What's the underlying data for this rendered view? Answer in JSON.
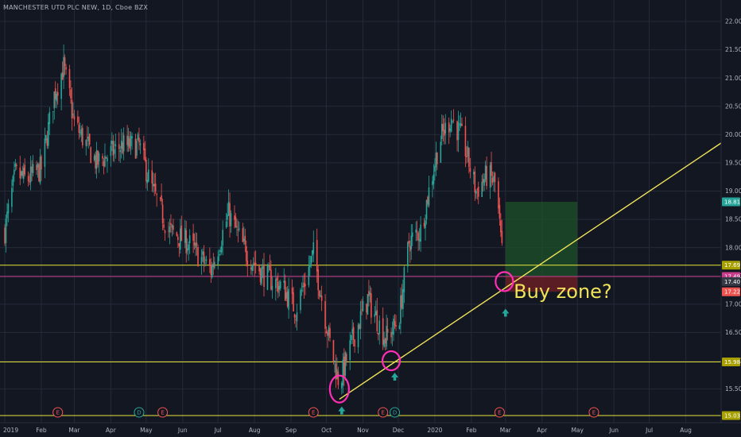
{
  "header": {
    "symbol_title": "MANCHESTER UTD PLC NEW, 1D, Cboe BZX"
  },
  "colors": {
    "background": "#131722",
    "grid": "#252a38",
    "candle_up": "#26a69a",
    "candle_down": "#ef5350",
    "trendline": "#f0e35a",
    "level_line": "#e6e63a",
    "entry_line": "#c93b8b",
    "annotation": "#ff2fb5",
    "arrow": "#26a69a",
    "profit_zone": "#1e5128",
    "loss_zone": "#6e1f25"
  },
  "chart_data": {
    "type": "candlestick",
    "title": "MANCHESTER UTD PLC NEW, 1D, Cboe BZX",
    "xlabel": "",
    "ylabel": "",
    "ylim": [
      15.0,
      22.1
    ],
    "y_ticks": [
      "15.50",
      "16.00",
      "16.50",
      "17.00",
      "17.50",
      "18.00",
      "18.50",
      "19.00",
      "19.50",
      "20.00",
      "20.50",
      "21.00",
      "21.50",
      "22.00"
    ],
    "x_ticks": [
      "2019",
      "Feb",
      "Mar",
      "Apr",
      "May",
      "Jun",
      "Jul",
      "Aug",
      "Sep",
      "Oct",
      "Nov",
      "Dec",
      "2020",
      "Feb",
      "Mar",
      "Apr",
      "May",
      "Jun",
      "Jul",
      "Aug"
    ],
    "grid": true,
    "price_path_close": [
      {
        "date": "2019-01-01",
        "close": 18.3
      },
      {
        "date": "2019-01-10",
        "close": 19.3
      },
      {
        "date": "2019-01-20",
        "close": 19.2
      },
      {
        "date": "2019-02-01",
        "close": 19.4
      },
      {
        "date": "2019-02-12",
        "close": 20.7
      },
      {
        "date": "2019-02-20",
        "close": 21.2
      },
      {
        "date": "2019-03-01",
        "close": 20.2
      },
      {
        "date": "2019-03-20",
        "close": 19.5
      },
      {
        "date": "2019-04-10",
        "close": 19.8
      },
      {
        "date": "2019-04-25",
        "close": 19.8
      },
      {
        "date": "2019-05-05",
        "close": 19.1
      },
      {
        "date": "2019-05-20",
        "close": 18.3
      },
      {
        "date": "2019-06-05",
        "close": 18.1
      },
      {
        "date": "2019-06-25",
        "close": 17.6
      },
      {
        "date": "2019-07-10",
        "close": 18.6
      },
      {
        "date": "2019-07-25",
        "close": 17.9
      },
      {
        "date": "2019-08-10",
        "close": 17.5
      },
      {
        "date": "2019-08-25",
        "close": 17.3
      },
      {
        "date": "2019-09-05",
        "close": 16.9
      },
      {
        "date": "2019-09-20",
        "close": 17.9
      },
      {
        "date": "2019-10-05",
        "close": 16.2
      },
      {
        "date": "2019-10-12",
        "close": 15.6
      },
      {
        "date": "2019-10-22",
        "close": 16.3
      },
      {
        "date": "2019-11-05",
        "close": 17.1
      },
      {
        "date": "2019-11-20",
        "close": 16.4
      },
      {
        "date": "2019-11-28",
        "close": 16.6
      },
      {
        "date": "2019-12-02",
        "close": 16.8
      },
      {
        "date": "2019-12-10",
        "close": 18.1
      },
      {
        "date": "2019-12-20",
        "close": 18.3
      },
      {
        "date": "2020-01-05",
        "close": 19.9
      },
      {
        "date": "2020-01-15",
        "close": 20.3
      },
      {
        "date": "2020-01-25",
        "close": 19.9
      },
      {
        "date": "2020-02-05",
        "close": 19.0
      },
      {
        "date": "2020-02-15",
        "close": 19.3
      },
      {
        "date": "2020-02-22",
        "close": 19.1
      },
      {
        "date": "2020-02-27",
        "close": 17.9
      }
    ],
    "trendline": {
      "start": {
        "date": "2019-10-12",
        "price": 15.32
      },
      "end": {
        "date": "2020-08-31",
        "price": 19.85
      }
    },
    "horizontal_levels": [
      {
        "name": "upper-level",
        "price": 17.69,
        "label": "17.69"
      },
      {
        "name": "support-level",
        "price": 15.98,
        "label": "15.98"
      },
      {
        "name": "bottom-level",
        "price": 15.03,
        "label": "15.03"
      }
    ],
    "position": {
      "entry": 17.49,
      "target": 18.81,
      "stop": 17.22,
      "start_date": "2020-03-01",
      "end_date": "2020-05-01"
    },
    "price_tags": [
      {
        "label": "18.81",
        "price": 18.81,
        "color": "#26a69a"
      },
      {
        "label": "17.69",
        "price": 17.69,
        "color": "#a7a000"
      },
      {
        "label": "17.49",
        "price": 17.49,
        "color": "#c93b8b"
      },
      {
        "label": "17.40",
        "price": 17.4,
        "color": "#363a45"
      },
      {
        "label": "17.22",
        "price": 17.22,
        "color": "#ef5350"
      },
      {
        "label": "15.98",
        "price": 15.98,
        "color": "#a7a000"
      },
      {
        "label": "15.03",
        "price": 15.03,
        "color": "#a7a000"
      }
    ],
    "event_markers": [
      {
        "date": "2019-02-15",
        "letter": "E",
        "kind": "earnings"
      },
      {
        "date": "2019-04-25",
        "letter": "D",
        "kind": "dividend"
      },
      {
        "date": "2019-05-15",
        "letter": "E",
        "kind": "earnings"
      },
      {
        "date": "2019-09-20",
        "letter": "E",
        "kind": "earnings"
      },
      {
        "date": "2019-11-18",
        "letter": "E",
        "kind": "earnings"
      },
      {
        "date": "2019-11-28",
        "letter": "D",
        "kind": "dividend"
      },
      {
        "date": "2020-02-25",
        "letter": "E",
        "kind": "earnings"
      },
      {
        "date": "2020-05-15",
        "letter": "E",
        "kind": "earnings"
      }
    ],
    "annotations": {
      "text": "Buy zone?",
      "circles": [
        {
          "date": "2019-10-12",
          "price": 15.5
        },
        {
          "date": "2019-11-25",
          "price": 16.0
        },
        {
          "date": "2020-02-29",
          "price": 17.4
        }
      ],
      "up_arrows": [
        {
          "date": "2019-10-14",
          "price": 15.12
        },
        {
          "date": "2019-11-28",
          "price": 15.72
        },
        {
          "date": "2020-03-01",
          "price": 16.85
        }
      ]
    }
  }
}
